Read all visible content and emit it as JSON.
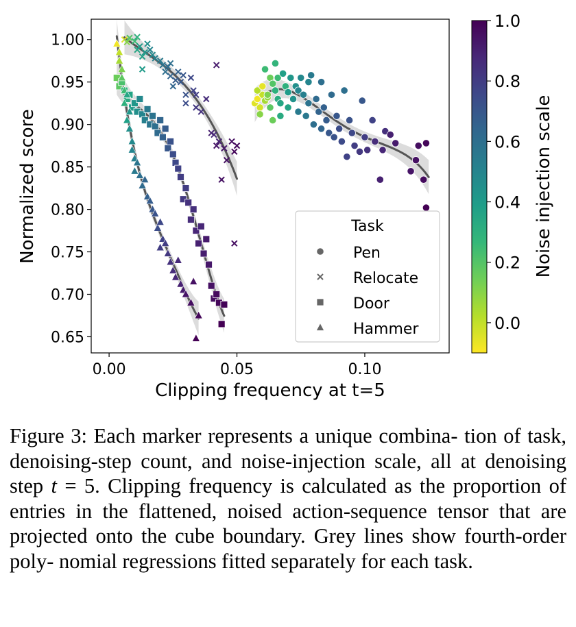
{
  "chart_data": {
    "type": "scatter",
    "title": "",
    "xlabel": "Clipping frequency at t=5",
    "ylabel": "Normalized score",
    "xlim": [
      -0.007,
      0.133
    ],
    "ylim": [
      0.631,
      1.024
    ],
    "xticks": [
      0.0,
      0.05,
      0.1
    ],
    "xtick_labels": [
      "0.00",
      "0.05",
      "0.10"
    ],
    "yticks": [
      0.65,
      0.7,
      0.75,
      0.8,
      0.85,
      0.9,
      0.95,
      1.0
    ],
    "ytick_labels": [
      "0.65",
      "0.70",
      "0.75",
      "0.80",
      "0.85",
      "0.90",
      "0.95",
      "1.00"
    ],
    "grid": false,
    "colorbar": {
      "label": "Noise injection scale",
      "range": [
        -0.1,
        1.0
      ],
      "ticks": [
        0.0,
        0.2,
        0.4,
        0.6,
        0.8,
        1.0
      ],
      "tick_labels": [
        "0.0",
        "0.2",
        "0.4",
        "0.6",
        "0.8",
        "1.0"
      ],
      "colors": [
        "#fde725",
        "#b5de2b",
        "#6ece58",
        "#35b779",
        "#1f9e89",
        "#26828e",
        "#31688e",
        "#3e4989",
        "#482878",
        "#440154"
      ]
    },
    "legend": {
      "title": "Task",
      "position": "lower-right",
      "entries": [
        {
          "label": "Pen",
          "marker": "circle"
        },
        {
          "label": "Relocate",
          "marker": "x"
        },
        {
          "label": "Door",
          "marker": "square"
        },
        {
          "label": "Hammer",
          "marker": "triangle"
        }
      ]
    },
    "series": [
      {
        "name": "Pen",
        "marker": "circle",
        "fit_range": [
          0.057,
          0.125
        ],
        "points": [
          [
            0.057,
            0.925,
            -0.05
          ],
          [
            0.058,
            0.93,
            -0.08
          ],
          [
            0.059,
            0.92,
            -0.03
          ],
          [
            0.06,
            0.935,
            0.0
          ],
          [
            0.058,
            0.94,
            0.02
          ],
          [
            0.061,
            0.928,
            0.05
          ],
          [
            0.06,
            0.945,
            -0.06
          ],
          [
            0.062,
            0.932,
            0.08
          ],
          [
            0.059,
            0.912,
            0.1
          ],
          [
            0.063,
            0.955,
            0.15
          ],
          [
            0.062,
            0.935,
            0.12
          ],
          [
            0.064,
            0.948,
            0.2
          ],
          [
            0.063,
            0.92,
            0.18
          ],
          [
            0.061,
            0.965,
            0.25
          ],
          [
            0.064,
            0.905,
            0.15
          ],
          [
            0.065,
            0.972,
            0.28
          ],
          [
            0.065,
            0.94,
            0.3
          ],
          [
            0.066,
            0.93,
            0.32
          ],
          [
            0.066,
            0.955,
            0.25
          ],
          [
            0.067,
            0.925,
            0.35
          ],
          [
            0.068,
            0.96,
            0.38
          ],
          [
            0.067,
            0.91,
            0.33
          ],
          [
            0.069,
            0.945,
            0.3
          ],
          [
            0.07,
            0.938,
            0.4
          ],
          [
            0.071,
            0.955,
            0.42
          ],
          [
            0.07,
            0.92,
            0.36
          ],
          [
            0.072,
            0.93,
            0.44
          ],
          [
            0.073,
            0.945,
            0.45
          ],
          [
            0.074,
            0.94,
            0.5
          ],
          [
            0.074,
            0.915,
            0.55
          ],
          [
            0.075,
            0.955,
            0.48
          ],
          [
            0.076,
            0.935,
            0.52
          ],
          [
            0.077,
            0.91,
            0.56
          ],
          [
            0.078,
            0.925,
            0.58
          ],
          [
            0.078,
            0.95,
            0.5
          ],
          [
            0.079,
            0.958,
            0.55
          ],
          [
            0.08,
            0.9,
            0.6
          ],
          [
            0.081,
            0.93,
            0.62
          ],
          [
            0.082,
            0.915,
            0.65
          ],
          [
            0.083,
            0.95,
            0.6
          ],
          [
            0.083,
            0.895,
            0.64
          ],
          [
            0.084,
            0.92,
            0.66
          ],
          [
            0.085,
            0.905,
            0.68
          ],
          [
            0.086,
            0.89,
            0.7
          ],
          [
            0.087,
            0.935,
            0.62
          ],
          [
            0.088,
            0.885,
            0.72
          ],
          [
            0.089,
            0.91,
            0.7
          ],
          [
            0.09,
            0.895,
            0.74
          ],
          [
            0.091,
            0.88,
            0.75
          ],
          [
            0.092,
            0.94,
            0.6
          ],
          [
            0.093,
            0.862,
            0.78
          ],
          [
            0.094,
            0.905,
            0.72
          ],
          [
            0.095,
            0.89,
            0.76
          ],
          [
            0.096,
            0.875,
            0.8
          ],
          [
            0.098,
            0.868,
            0.82
          ],
          [
            0.099,
            0.928,
            0.7
          ],
          [
            0.1,
            0.885,
            0.8
          ],
          [
            0.101,
            0.87,
            0.84
          ],
          [
            0.103,
            0.905,
            0.78
          ],
          [
            0.104,
            0.88,
            0.86
          ],
          [
            0.106,
            0.835,
            0.9
          ],
          [
            0.107,
            0.87,
            0.88
          ],
          [
            0.108,
            0.892,
            0.85
          ],
          [
            0.11,
            0.888,
            0.9
          ],
          [
            0.112,
            0.878,
            0.92
          ],
          [
            0.118,
            0.845,
            0.94
          ],
          [
            0.12,
            0.858,
            0.95
          ],
          [
            0.121,
            0.875,
            0.96
          ],
          [
            0.123,
            0.835,
            0.97
          ],
          [
            0.124,
            0.878,
            0.98
          ],
          [
            0.124,
            0.802,
            1.0
          ]
        ]
      },
      {
        "name": "Relocate",
        "marker": "x",
        "fit_range": [
          0.006,
          0.05
        ],
        "points": [
          [
            0.006,
            1.0,
            -0.05
          ],
          [
            0.007,
            0.997,
            0.1
          ],
          [
            0.008,
            1.002,
            0.2
          ],
          [
            0.01,
            0.998,
            0.25
          ],
          [
            0.011,
            1.003,
            0.3
          ],
          [
            0.011,
            0.988,
            0.35
          ],
          [
            0.012,
            0.992,
            0.4
          ],
          [
            0.013,
            0.98,
            0.38
          ],
          [
            0.014,
            0.985,
            0.42
          ],
          [
            0.015,
            0.995,
            0.45
          ],
          [
            0.016,
            0.988,
            0.5
          ],
          [
            0.017,
            0.982,
            0.48
          ],
          [
            0.018,
            0.978,
            0.52
          ],
          [
            0.013,
            0.965,
            0.4
          ],
          [
            0.02,
            0.975,
            0.55
          ],
          [
            0.021,
            0.97,
            0.58
          ],
          [
            0.022,
            0.962,
            0.6
          ],
          [
            0.023,
            0.968,
            0.62
          ],
          [
            0.024,
            0.972,
            0.6
          ],
          [
            0.024,
            0.957,
            0.65
          ],
          [
            0.025,
            0.945,
            0.64
          ],
          [
            0.026,
            0.952,
            0.68
          ],
          [
            0.027,
            0.962,
            0.66
          ],
          [
            0.028,
            0.95,
            0.7
          ],
          [
            0.029,
            0.958,
            0.7
          ],
          [
            0.03,
            0.935,
            0.72
          ],
          [
            0.03,
            0.925,
            0.74
          ],
          [
            0.032,
            0.955,
            0.76
          ],
          [
            0.033,
            0.94,
            0.78
          ],
          [
            0.034,
            0.935,
            0.8
          ],
          [
            0.034,
            0.92,
            0.82
          ],
          [
            0.036,
            0.915,
            0.84
          ],
          [
            0.038,
            0.93,
            0.86
          ],
          [
            0.04,
            0.89,
            0.9
          ],
          [
            0.041,
            0.888,
            0.88
          ],
          [
            0.042,
            0.97,
            0.92
          ],
          [
            0.042,
            0.875,
            0.94
          ],
          [
            0.043,
            0.88,
            0.9
          ],
          [
            0.045,
            0.872,
            0.93
          ],
          [
            0.046,
            0.858,
            0.95
          ],
          [
            0.048,
            0.88,
            0.96
          ],
          [
            0.05,
            0.875,
            0.97
          ],
          [
            0.049,
            0.868,
            0.98
          ],
          [
            0.044,
            0.835,
            0.95
          ],
          [
            0.049,
            0.76,
            0.96
          ]
        ]
      },
      {
        "name": "Door",
        "marker": "square",
        "fit_range": [
          0.003,
          0.045
        ],
        "points": [
          [
            0.003,
            0.955,
            0.15
          ],
          [
            0.004,
            0.945,
            0.18
          ],
          [
            0.005,
            0.95,
            0.22
          ],
          [
            0.006,
            0.94,
            0.28
          ],
          [
            0.007,
            0.93,
            0.33
          ],
          [
            0.008,
            0.935,
            0.36
          ],
          [
            0.009,
            0.92,
            0.4
          ],
          [
            0.01,
            0.925,
            0.42
          ],
          [
            0.011,
            0.915,
            0.45
          ],
          [
            0.012,
            0.93,
            0.48
          ],
          [
            0.013,
            0.912,
            0.5
          ],
          [
            0.014,
            0.905,
            0.52
          ],
          [
            0.015,
            0.918,
            0.55
          ],
          [
            0.016,
            0.9,
            0.57
          ],
          [
            0.017,
            0.91,
            0.58
          ],
          [
            0.018,
            0.898,
            0.6
          ],
          [
            0.019,
            0.89,
            0.62
          ],
          [
            0.02,
            0.905,
            0.64
          ],
          [
            0.021,
            0.885,
            0.66
          ],
          [
            0.022,
            0.895,
            0.68
          ],
          [
            0.023,
            0.872,
            0.7
          ],
          [
            0.024,
            0.88,
            0.72
          ],
          [
            0.025,
            0.865,
            0.74
          ],
          [
            0.026,
            0.855,
            0.76
          ],
          [
            0.027,
            0.848,
            0.78
          ],
          [
            0.028,
            0.838,
            0.8
          ],
          [
            0.029,
            0.812,
            0.82
          ],
          [
            0.03,
            0.825,
            0.8
          ],
          [
            0.031,
            0.808,
            0.84
          ],
          [
            0.032,
            0.788,
            0.86
          ],
          [
            0.033,
            0.8,
            0.85
          ],
          [
            0.034,
            0.775,
            0.88
          ],
          [
            0.035,
            0.76,
            0.9
          ],
          [
            0.036,
            0.78,
            0.88
          ],
          [
            0.037,
            0.748,
            0.91
          ],
          [
            0.038,
            0.765,
            0.92
          ],
          [
            0.039,
            0.735,
            0.93
          ],
          [
            0.04,
            0.71,
            0.95
          ],
          [
            0.041,
            0.695,
            0.96
          ],
          [
            0.042,
            0.7,
            0.97
          ],
          [
            0.043,
            0.69,
            0.98
          ],
          [
            0.044,
            0.665,
            1.0
          ],
          [
            0.045,
            0.688,
            0.99
          ]
        ]
      },
      {
        "name": "Hammer",
        "marker": "triangle",
        "fit_range": [
          0.003,
          0.035
        ],
        "points": [
          [
            0.003,
            0.995,
            -0.08
          ],
          [
            0.004,
            0.985,
            0.0
          ],
          [
            0.004,
            0.975,
            0.05
          ],
          [
            0.005,
            0.965,
            0.12
          ],
          [
            0.005,
            0.955,
            0.18
          ],
          [
            0.006,
            0.94,
            0.25
          ],
          [
            0.006,
            0.925,
            0.3
          ],
          [
            0.007,
            0.935,
            0.35
          ],
          [
            0.007,
            0.905,
            0.38
          ],
          [
            0.008,
            0.915,
            0.42
          ],
          [
            0.008,
            0.895,
            0.45
          ],
          [
            0.009,
            0.88,
            0.48
          ],
          [
            0.009,
            0.87,
            0.5
          ],
          [
            0.01,
            0.86,
            0.52
          ],
          [
            0.01,
            0.845,
            0.55
          ],
          [
            0.011,
            0.855,
            0.57
          ],
          [
            0.012,
            0.84,
            0.6
          ],
          [
            0.013,
            0.828,
            0.62
          ],
          [
            0.014,
            0.835,
            0.64
          ],
          [
            0.015,
            0.815,
            0.66
          ],
          [
            0.016,
            0.81,
            0.68
          ],
          [
            0.017,
            0.8,
            0.7
          ],
          [
            0.018,
            0.795,
            0.72
          ],
          [
            0.019,
            0.778,
            0.74
          ],
          [
            0.02,
            0.785,
            0.76
          ],
          [
            0.021,
            0.765,
            0.78
          ],
          [
            0.022,
            0.76,
            0.8
          ],
          [
            0.023,
            0.748,
            0.82
          ],
          [
            0.024,
            0.738,
            0.84
          ],
          [
            0.025,
            0.728,
            0.86
          ],
          [
            0.026,
            0.72,
            0.88
          ],
          [
            0.027,
            0.74,
            0.87
          ],
          [
            0.028,
            0.712,
            0.9
          ],
          [
            0.029,
            0.705,
            0.92
          ],
          [
            0.03,
            0.7,
            0.94
          ],
          [
            0.032,
            0.69,
            0.96
          ],
          [
            0.035,
            0.675,
            0.98
          ],
          [
            0.034,
            0.648,
            1.0
          ],
          [
            0.033,
            0.715,
            0.95
          ],
          [
            0.02,
            0.755,
            0.8
          ]
        ]
      }
    ]
  },
  "caption": {
    "label": "Figure 3:",
    "text_before": "Each marker represents a unique combina- tion of task, denoising-step count, and noise-injection scale, all at denoising step",
    "variable": "t",
    "equals": "= 5.",
    "text_after": "Clipping frequency is calculated as the proportion of entries in the flattened, noised action-sequence tensor that are projected onto the cube boundary. Grey lines show fourth-order poly- nomial regressions fitted separately for each task."
  }
}
